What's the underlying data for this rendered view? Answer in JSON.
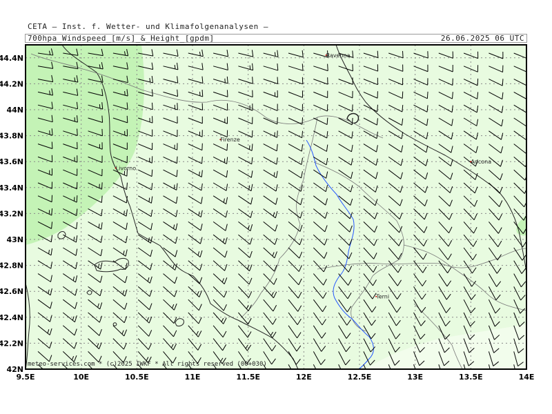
{
  "header": {
    "institute": "CETA — Inst. f. Wetter- und Klimafolgenanalysen —",
    "title": "700hpa_Windspeed_[m/s]_&_Height_[gpdm]",
    "valid_time": "26.06.2025 06 UTC"
  },
  "map": {
    "lon_range": [
      9.5,
      14.0
    ],
    "lat_range": [
      42.0,
      44.5
    ],
    "x_ticks": [
      "9.5E",
      "10E",
      "10.5E",
      "11E",
      "11.5E",
      "12E",
      "12.5E",
      "13E",
      "13.5E",
      "14E"
    ],
    "y_ticks": [
      "42N",
      "42.2N",
      "42.4N",
      "42.6N",
      "42.8N",
      "43N",
      "43.2N",
      "43.4N",
      "43.6N",
      "43.8N",
      "44N",
      "44.2N",
      "44.4N"
    ],
    "cities": [
      {
        "name": "Ravenna",
        "lon": 12.2,
        "lat": 44.42
      },
      {
        "name": "Firenze",
        "lon": 11.25,
        "lat": 43.77
      },
      {
        "name": "Livorno",
        "lon": 10.31,
        "lat": 43.55
      },
      {
        "name": "Ancona",
        "lon": 13.5,
        "lat": 43.6
      },
      {
        "name": "Terni",
        "lon": 12.65,
        "lat": 42.56
      }
    ],
    "credit": "meteo-services.com * (c)2025 IWKF * All rights reserved (00+030)",
    "colors": {
      "background": "#e8fbe0",
      "strong_wind": "#c4f3b6",
      "river": "#2255ff",
      "barb": "#000000"
    }
  }
}
